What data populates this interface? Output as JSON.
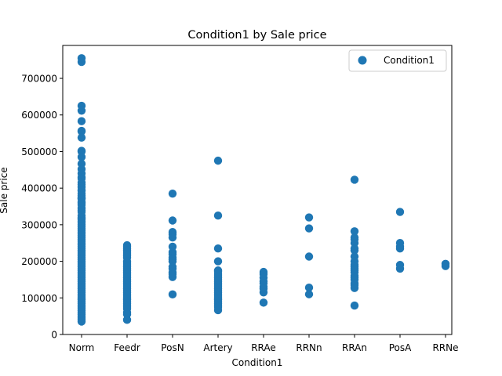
{
  "chart_data": {
    "type": "scatter",
    "title": "Condition1 by Sale price",
    "xlabel": "Condition1",
    "ylabel": "Sale price",
    "categories": [
      "Norm",
      "Feedr",
      "PosN",
      "Artery",
      "RRAe",
      "RRNn",
      "RRAn",
      "PosA",
      "RRNe"
    ],
    "ylim": [
      0,
      790000
    ],
    "yticks": [
      0,
      100000,
      200000,
      300000,
      400000,
      500000,
      600000,
      700000
    ],
    "ytick_labels": [
      "0",
      "100000",
      "200000",
      "300000",
      "400000",
      "500000",
      "600000",
      "700000"
    ],
    "legend": {
      "label": "Condition1",
      "position": "top-right"
    },
    "grid": false,
    "point_color": "#1f77b4",
    "series": [
      {
        "name": "Condition1",
        "points": {
          "Norm": [
            755000,
            745000,
            625000,
            611657,
            582933,
            556581,
            555000,
            538000,
            501837,
            500000,
            485000,
            466500,
            451950,
            440000,
            430000,
            426000,
            415298,
            410000,
            402861,
            395000,
            392500,
            385000,
            380000,
            375000,
            372500,
            370878,
            361919,
            359100,
            354000,
            345000,
            340000,
            335000,
            325000,
            320000,
            317000,
            315000,
            310000,
            305000,
            300000,
            295000,
            290000,
            285000,
            280000,
            275000,
            270000,
            265000,
            260000,
            255000,
            250000,
            245000,
            240000,
            235000,
            230000,
            225000,
            220000,
            215000,
            210000,
            205000,
            200000,
            195000,
            190000,
            185000,
            180000,
            175000,
            170000,
            165000,
            160000,
            155000,
            150000,
            145000,
            140000,
            135000,
            130000,
            125000,
            120000,
            115000,
            110000,
            105000,
            100000,
            95000,
            90000,
            85000,
            80000,
            75000,
            70000,
            65000,
            60000,
            55000,
            50000,
            45000,
            40000,
            35311
          ],
          "Feedr": [
            244000,
            240000,
            235000,
            230000,
            225000,
            220000,
            215000,
            210000,
            200000,
            195000,
            190000,
            185000,
            180000,
            175000,
            170000,
            165000,
            160000,
            155000,
            150000,
            145000,
            140000,
            135000,
            130000,
            125000,
            120000,
            115000,
            110000,
            105000,
            100000,
            95000,
            90000,
            85000,
            80000,
            75000,
            70000,
            60000,
            55000,
            40000
          ],
          "PosN": [
            385000,
            311500,
            280000,
            274000,
            265000,
            240000,
            225000,
            219500,
            210000,
            205000,
            200000,
            185000,
            180000,
            170000,
            165000,
            157000,
            109500
          ],
          "Artery": [
            475000,
            325000,
            235000,
            200000,
            175000,
            172500,
            165000,
            160000,
            155000,
            150000,
            145000,
            140000,
            135000,
            130000,
            125000,
            120000,
            115000,
            110000,
            105000,
            100000,
            95000,
            90000,
            85000,
            80000,
            75000,
            66500
          ],
          "RRAe": [
            171000,
            165000,
            155000,
            145000,
            140000,
            130000,
            125000,
            115000,
            87000
          ],
          "RRNn": [
            320000,
            290000,
            213000,
            128000,
            110000
          ],
          "RRAn": [
            423000,
            282000,
            265000,
            260000,
            250000,
            235000,
            230000,
            213000,
            200000,
            190000,
            185000,
            180000,
            175000,
            170000,
            160000,
            155000,
            150000,
            140000,
            135000,
            127000,
            79000
          ],
          "PosA": [
            335000,
            250000,
            240000,
            235000,
            190000,
            180000
          ],
          "RRNe": [
            193000,
            187000
          ]
        }
      }
    ]
  }
}
